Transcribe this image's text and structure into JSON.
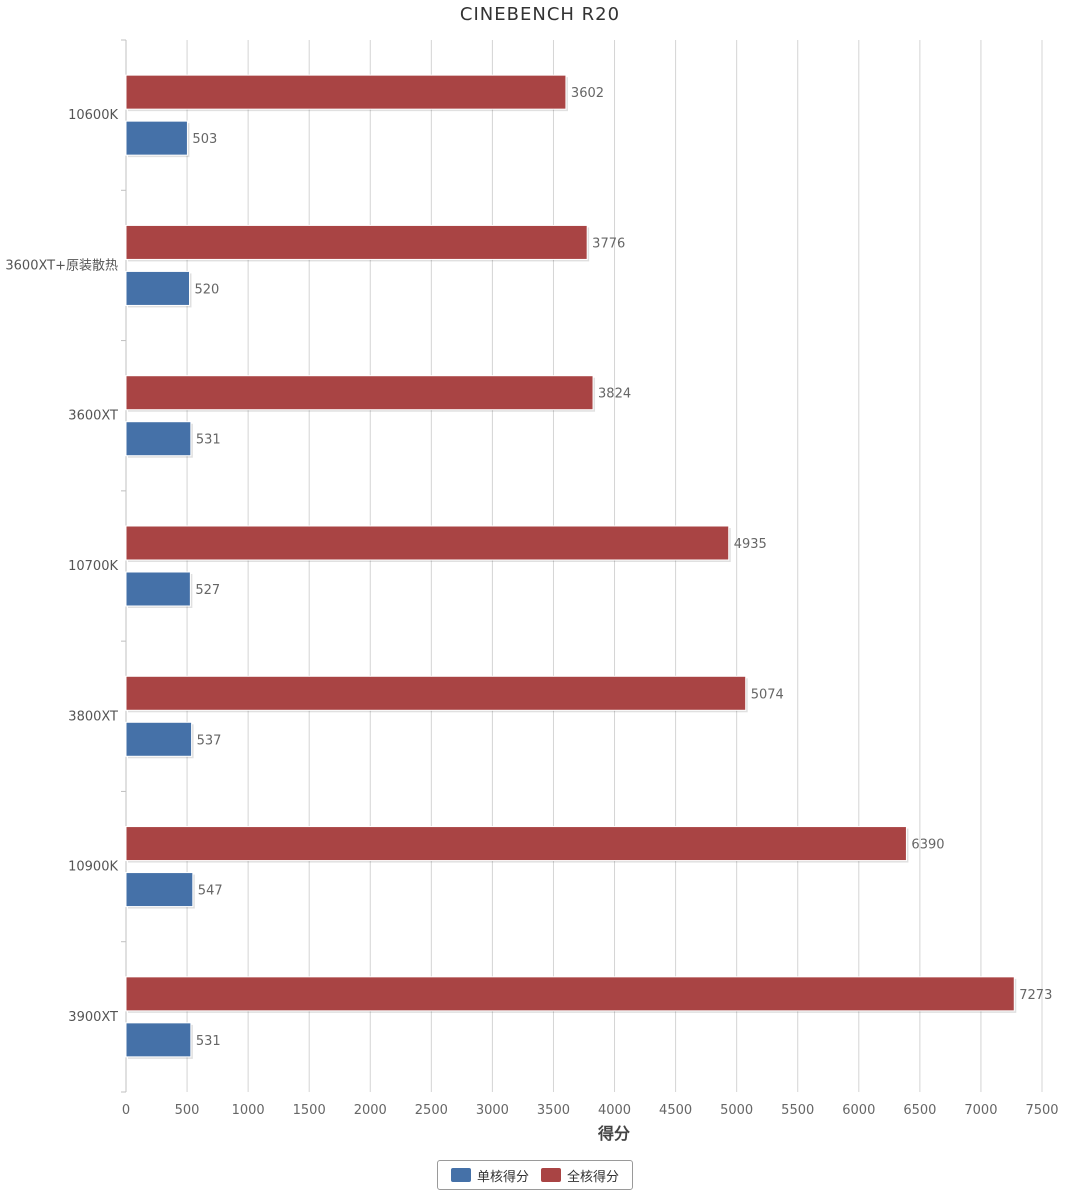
{
  "chart_data": {
    "type": "bar",
    "orientation": "horizontal",
    "title": "CINEBENCH R20",
    "xlabel": "得分",
    "ylabel": "",
    "xlim": [
      0,
      7500
    ],
    "xticks": [
      0,
      500,
      1000,
      1500,
      2000,
      2500,
      3000,
      3500,
      4000,
      4500,
      5000,
      5500,
      6000,
      6500,
      7000,
      7500
    ],
    "grid": true,
    "legend_position": "bottom-center",
    "categories": [
      "10600K",
      "3600XT+原装散热",
      "3600XT",
      "10700K",
      "3800XT",
      "10900K",
      "3900XT"
    ],
    "series": [
      {
        "name": "全核得分",
        "color": "#a94444",
        "values": [
          3602,
          3776,
          3824,
          4935,
          5074,
          6390,
          7273
        ]
      },
      {
        "name": "单核得分",
        "color": "#4571a8",
        "values": [
          503,
          520,
          531,
          527,
          537,
          547,
          531
        ]
      }
    ],
    "legend_order": [
      "单核得分",
      "全核得分"
    ]
  }
}
